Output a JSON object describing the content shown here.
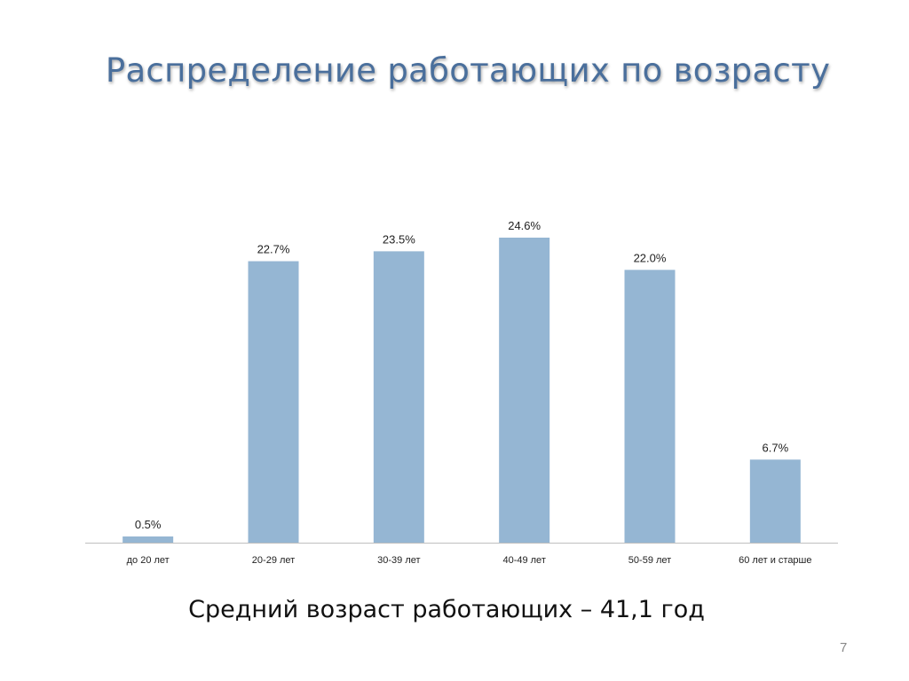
{
  "slide": {
    "title": "Распределение работающих по возрасту",
    "caption": "Средний возраст работающих – 41,1 год",
    "page_number": "7"
  },
  "chart_data": {
    "type": "bar",
    "categories": [
      "до 20 лет",
      "20-29 лет",
      "30-39 лет",
      "40-49 лет",
      "50-59 лет",
      "60 лет и старше"
    ],
    "values": [
      0.5,
      22.7,
      23.5,
      24.6,
      22.0,
      6.7
    ],
    "value_labels": [
      "0.5%",
      "22.7%",
      "23.5%",
      "24.6%",
      "22.0%",
      "6.7%"
    ],
    "unit": "%",
    "title": "",
    "xlabel": "",
    "ylabel": "",
    "ylim": [
      0,
      26
    ],
    "grid": false,
    "legend": "none",
    "bar_color": "#95b6d3",
    "axis_color": "#bfbfbf"
  }
}
